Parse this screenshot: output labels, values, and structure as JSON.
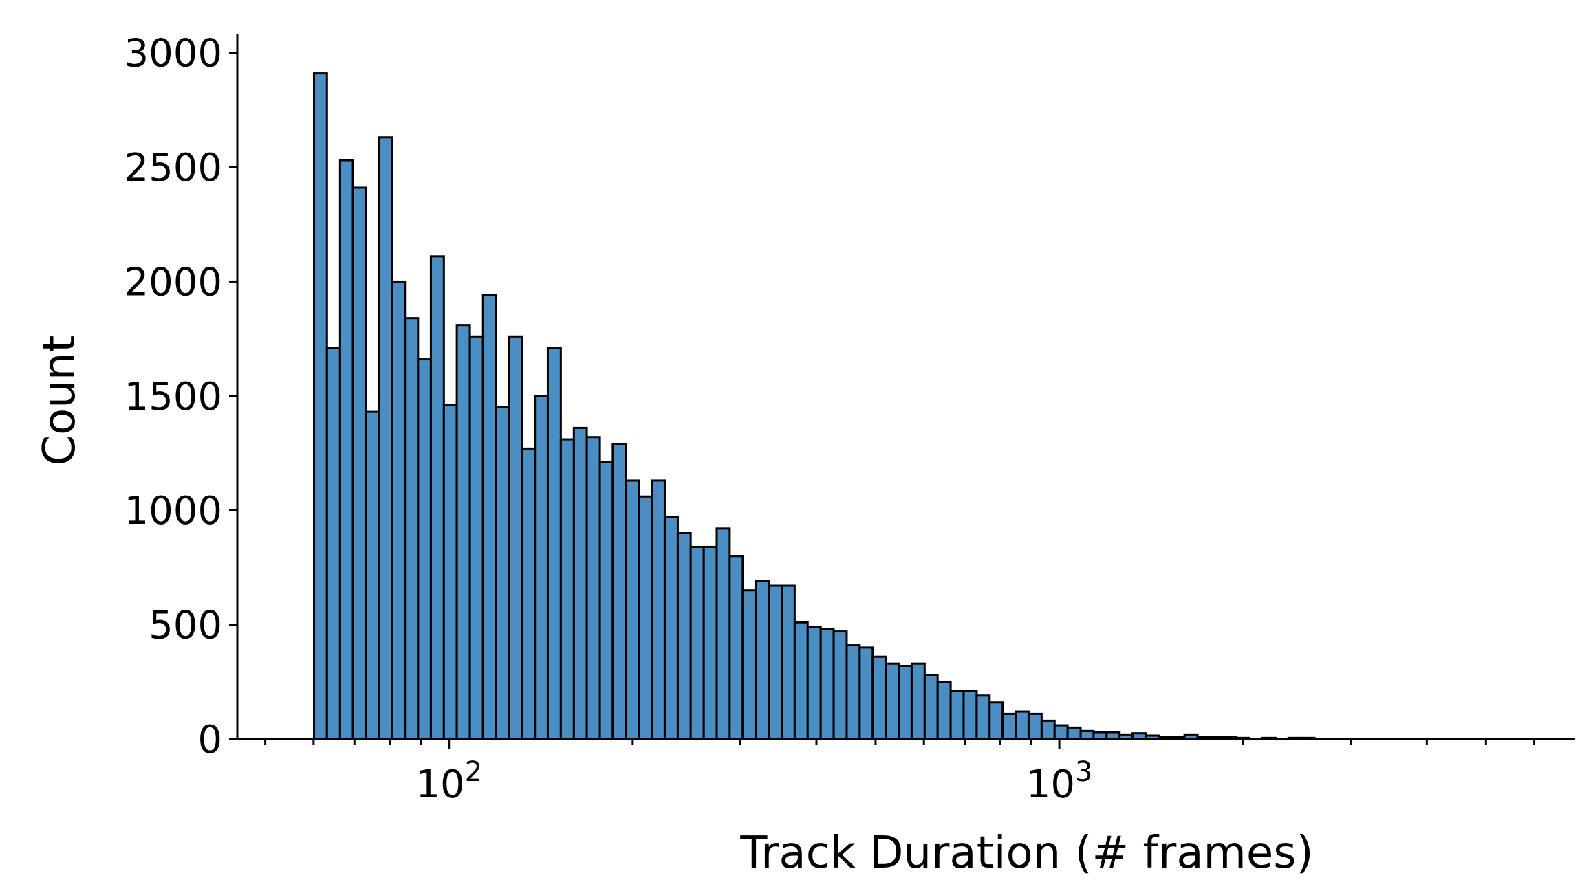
{
  "chart_data": {
    "type": "bar",
    "xlabel": "Track Duration (# frames)",
    "ylabel": "Count",
    "x_scale": "log",
    "xlim": [
      45,
      7000
    ],
    "ylim": [
      0,
      3050
    ],
    "yticks": [
      0,
      500,
      1000,
      1500,
      2000,
      2500,
      3000
    ],
    "xticks_major": [
      {
        "value": 100,
        "base": "10",
        "exp": "2"
      },
      {
        "value": 1000,
        "base": "10",
        "exp": "3"
      }
    ],
    "xticks_minor": [
      50,
      60,
      70,
      80,
      90,
      200,
      300,
      400,
      500,
      600,
      700,
      800,
      900,
      2000,
      3000,
      4000,
      5000,
      6000
    ],
    "grid": false,
    "bar_color": "#4a8ec3",
    "bin_edges": [
      60.1,
      63.1,
      66.3,
      69.6,
      73.1,
      76.8,
      80.7,
      84.7,
      89.0,
      93.4,
      98.1,
      103.0,
      108.2,
      113.7,
      119.4,
      125.4,
      131.7,
      138.3,
      145.2,
      152.5,
      160.2,
      168.2,
      176.7,
      185.5,
      194.9,
      204.6,
      214.9,
      225.7,
      237.1,
      248.9,
      261.5,
      274.6,
      288.4,
      302.9,
      318.1,
      334.1,
      350.9,
      368.5,
      387.0,
      406.5,
      426.9,
      448.4,
      470.9,
      494.6,
      519.4,
      545.5,
      572.9,
      601.7,
      631.9,
      663.7,
      697.0,
      732.1,
      768.8,
      807.5,
      848.0,
      890.6,
      935.4,
      982.4,
      1031.7,
      1083.6,
      1138.0,
      1195.2,
      1255.2,
      1318.3,
      1384.5,
      1454.1,
      1527.1,
      1603.8,
      1684.4,
      1769.0,
      1857.9,
      1951.2,
      2049.2,
      2152.2,
      2260.3,
      2373.8,
      2493.1,
      2618.3
    ],
    "values": [
      2910,
      1710,
      2530,
      2410,
      1430,
      2630,
      2000,
      1840,
      1660,
      2110,
      1460,
      1810,
      1760,
      1940,
      1450,
      1760,
      1270,
      1500,
      1710,
      1310,
      1360,
      1320,
      1210,
      1290,
      1130,
      1060,
      1130,
      970,
      900,
      840,
      840,
      920,
      800,
      650,
      690,
      670,
      670,
      510,
      490,
      480,
      470,
      410,
      400,
      360,
      330,
      320,
      330,
      280,
      250,
      210,
      210,
      190,
      160,
      110,
      120,
      110,
      80,
      60,
      50,
      35,
      30,
      30,
      20,
      25,
      15,
      10,
      10,
      20,
      10,
      10,
      10,
      5,
      0,
      5,
      0,
      5,
      5
    ]
  }
}
